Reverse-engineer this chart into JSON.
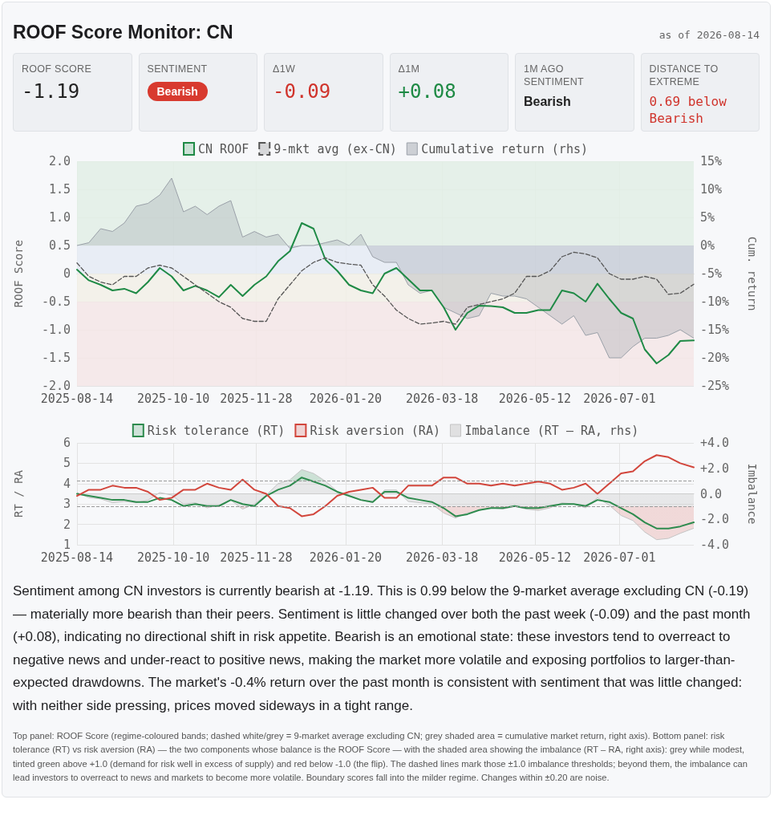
{
  "chart_data": [
    {
      "type": "other",
      "title": "ROOF Score Monitor: CN",
      "subtitle": "as of 2026-08-14",
      "annotations": [
        "ROOF SCORE",
        "-1.19",
        "SENTIMENT",
        "Bearish",
        "Δ1W",
        "-0.09",
        "Δ1M",
        "+0.08",
        "1M AGO SENTIMENT",
        "Bearish",
        "DISTANCE TO EXTREME",
        "0.69 below Bearish"
      ]
    },
    {
      "type": "line",
      "legend": "top",
      "grid": true,
      "marker": "none",
      "ylabel": "ROOF Score",
      "y2label": "Cum. return",
      "x": [
        "2025-08-14",
        "2025-08-21",
        "2025-08-28",
        "2025-09-04",
        "2025-09-11",
        "2025-09-18",
        "2025-09-25",
        "2025-10-02",
        "2025-10-09",
        "2025-10-16",
        "2025-10-23",
        "2025-10-30",
        "2025-11-06",
        "2025-11-13",
        "2025-11-20",
        "2025-11-27",
        "2025-12-04",
        "2025-12-11",
        "2025-12-18",
        "2025-12-25",
        "2026-01-01",
        "2026-01-08",
        "2026-01-15",
        "2026-01-22",
        "2026-01-29",
        "2026-02-05",
        "2026-02-12",
        "2026-02-19",
        "2026-02-26",
        "2026-03-05",
        "2026-03-12",
        "2026-03-19",
        "2026-03-26",
        "2026-04-02",
        "2026-04-09",
        "2026-04-16",
        "2026-04-23",
        "2026-04-30",
        "2026-05-07",
        "2026-05-14",
        "2026-05-21",
        "2026-05-28",
        "2026-06-04",
        "2026-06-11",
        "2026-06-18",
        "2026-06-25",
        "2026-07-02",
        "2026-07-09",
        "2026-07-16",
        "2026-07-23",
        "2026-07-30",
        "2026-08-06",
        "2026-08-14"
      ],
      "xlim": [
        "2025-08-14",
        "2026-08-14"
      ],
      "xticks": [
        "2025-08-14",
        "2025-10-10",
        "2025-11-28",
        "2026-01-20",
        "2026-03-18",
        "2026-05-12",
        "2026-07-01"
      ],
      "ylim": [
        -2,
        2
      ],
      "yticks": [
        {
          "value": -2,
          "label": "-2.0"
        },
        -1.5,
        {
          "value": -1,
          "label": "-1.0"
        },
        -0.5,
        0,
        0.5,
        {
          "value": 1,
          "label": "1.0"
        },
        1.5,
        {
          "value": 2,
          "label": "2.0"
        }
      ],
      "y2lim": [
        -25,
        15
      ],
      "y2ticks": [
        {
          "value": -25,
          "label": "-25%"
        },
        {
          "value": -20,
          "label": "-20%"
        },
        {
          "value": -15,
          "label": "-15%"
        },
        {
          "value": -10,
          "label": "-10%"
        },
        {
          "value": -5,
          "label": "-5%"
        },
        {
          "value": 0,
          "label": "0%"
        },
        {
          "value": 5,
          "label": "5%"
        },
        {
          "value": 10,
          "label": "10%"
        },
        {
          "value": 15,
          "label": "15%"
        }
      ],
      "bands": [
        {
          "axis": "y",
          "from": 0.5,
          "to": 2,
          "color": "#e2eee5"
        },
        {
          "axis": "y",
          "from": 0,
          "to": 0.5,
          "color": "#e5ebf3"
        },
        {
          "axis": "y",
          "from": -0.5,
          "to": 0,
          "color": "#f2f0e6"
        },
        {
          "axis": "y",
          "from": -2,
          "to": -0.5,
          "color": "#f5e6e6"
        }
      ],
      "series": [
        {
          "name": "CN ROOF",
          "color": "#1f8a46",
          "values": [
            0.07,
            -0.12,
            -0.2,
            -0.3,
            -0.27,
            -0.35,
            -0.15,
            0.1,
            -0.05,
            -0.3,
            -0.22,
            -0.3,
            -0.42,
            -0.2,
            -0.4,
            -0.2,
            -0.05,
            0.22,
            0.4,
            0.9,
            0.8,
            0.25,
            0.05,
            -0.2,
            -0.3,
            -0.35,
            0,
            0.1,
            -0.1,
            -0.3,
            -0.3,
            -0.6,
            -1,
            -0.7,
            -0.57,
            -0.58,
            -0.6,
            -0.7,
            -0.7,
            -0.65,
            -0.65,
            -0.3,
            -0.35,
            -0.5,
            -0.18,
            -0.45,
            -0.7,
            -0.8,
            -1.35,
            -1.6,
            -1.45,
            -1.2,
            -1.19
          ]
        },
        {
          "name": "9-mkt avg (ex-CN)",
          "color": "#555555",
          "line_style": "dashed",
          "values": [
            0.19,
            -0.05,
            -0.15,
            -0.2,
            -0.05,
            -0.05,
            0.1,
            0.15,
            0.1,
            -0.05,
            -0.2,
            -0.35,
            -0.5,
            -0.6,
            -0.8,
            -0.85,
            -0.85,
            -0.45,
            -0.2,
            0.05,
            0.2,
            0.28,
            0.2,
            0.17,
            0.15,
            -0.2,
            -0.4,
            -0.65,
            -0.8,
            -0.9,
            -0.88,
            -0.85,
            -0.9,
            -0.6,
            -0.55,
            -0.5,
            -0.45,
            -0.35,
            -0.05,
            -0.05,
            0.05,
            0.3,
            0.38,
            0.35,
            0.28,
            0,
            -0.1,
            -0.1,
            -0.05,
            -0.1,
            -0.37,
            -0.35,
            -0.19
          ]
        },
        {
          "name": "Cumulative return (rhs)",
          "type": "area",
          "axis": "y2",
          "color": "#9aa0a8",
          "values": [
            0,
            0.5,
            3,
            2.5,
            4,
            7,
            7.5,
            9,
            12,
            6,
            7,
            5.5,
            7,
            8,
            1.5,
            2.5,
            1.5,
            2,
            -0.5,
            0,
            0,
            0.5,
            1,
            0,
            2,
            -2,
            -3,
            -3,
            -7,
            -8.5,
            -8,
            -11,
            -12,
            -13,
            -12.5,
            -8.5,
            -9,
            -9,
            -9.5,
            -11,
            -12.5,
            -14,
            -12.5,
            -16,
            -15.5,
            -20,
            -20,
            -18,
            -16.5,
            -16.5,
            -16,
            -15,
            -16.5
          ]
        }
      ]
    },
    {
      "type": "line",
      "legend": "top",
      "grid": true,
      "marker": "none",
      "ylabel": "RT / RA",
      "y2label": "Imbalance",
      "x": [
        "2025-08-14",
        "2025-08-21",
        "2025-08-28",
        "2025-09-04",
        "2025-09-11",
        "2025-09-18",
        "2025-09-25",
        "2025-10-02",
        "2025-10-09",
        "2025-10-16",
        "2025-10-23",
        "2025-10-30",
        "2025-11-06",
        "2025-11-13",
        "2025-11-20",
        "2025-11-27",
        "2025-12-04",
        "2025-12-11",
        "2025-12-18",
        "2025-12-25",
        "2026-01-01",
        "2026-01-08",
        "2026-01-15",
        "2026-01-22",
        "2026-01-29",
        "2026-02-05",
        "2026-02-12",
        "2026-02-19",
        "2026-02-26",
        "2026-03-05",
        "2026-03-12",
        "2026-03-19",
        "2026-03-26",
        "2026-04-02",
        "2026-04-09",
        "2026-04-16",
        "2026-04-23",
        "2026-04-30",
        "2026-05-07",
        "2026-05-14",
        "2026-05-21",
        "2026-05-28",
        "2026-06-04",
        "2026-06-11",
        "2026-06-18",
        "2026-06-25",
        "2026-07-02",
        "2026-07-09",
        "2026-07-16",
        "2026-07-23",
        "2026-07-30",
        "2026-08-06",
        "2026-08-14"
      ],
      "xlim": [
        "2025-08-14",
        "2026-08-14"
      ],
      "xticks": [
        "2025-08-14",
        "2025-10-10",
        "2025-11-28",
        "2026-01-20",
        "2026-03-18",
        "2026-05-12",
        "2026-07-01"
      ],
      "ylim": [
        1,
        6
      ],
      "yticks": [
        1,
        2,
        3,
        4,
        5,
        6
      ],
      "y2lim": [
        -4,
        4
      ],
      "y2ticks": [
        {
          "value": -4,
          "label": "-4.0"
        },
        {
          "value": -2,
          "label": "-2.0"
        },
        {
          "value": 0,
          "label": "0.0"
        },
        {
          "value": 2,
          "label": "+2.0"
        },
        {
          "value": 4,
          "label": "+4.0"
        }
      ],
      "ref_lines": [
        {
          "axis": "y2",
          "value": 1,
          "color": "#9a9a9a",
          "line_style": "dashed"
        },
        {
          "axis": "y2",
          "value": -1,
          "color": "#9a9a9a",
          "line_style": "dashed"
        }
      ],
      "series": [
        {
          "name": "Risk tolerance (RT)",
          "color": "#2e8b4e",
          "values": [
            3.5,
            3.4,
            3.3,
            3.2,
            3.2,
            3.1,
            3.1,
            3.3,
            3.2,
            2.9,
            3.0,
            2.9,
            2.9,
            3.2,
            3.0,
            2.9,
            3.4,
            3.7,
            3.9,
            4.3,
            4.1,
            3.9,
            3.6,
            3.4,
            3.2,
            3.1,
            3.6,
            3.6,
            3.3,
            3.2,
            3.1,
            2.8,
            2.4,
            2.5,
            2.7,
            2.8,
            2.8,
            2.9,
            2.8,
            2.8,
            2.9,
            3.0,
            3.0,
            2.9,
            3.2,
            3.1,
            2.8,
            2.5,
            2.1,
            1.8,
            1.8,
            1.9,
            2.1
          ]
        },
        {
          "name": "Risk aversion (RA)",
          "color": "#d2463c",
          "values": [
            3.4,
            3.7,
            3.7,
            3.9,
            3.8,
            3.8,
            3.6,
            3.2,
            3.3,
            3.7,
            3.7,
            4.0,
            3.8,
            3.7,
            4.2,
            3.7,
            3.5,
            2.9,
            2.8,
            2.4,
            2.5,
            2.9,
            3.4,
            3.6,
            3.7,
            3.8,
            3.3,
            3.3,
            3.9,
            3.9,
            3.9,
            4.3,
            4.3,
            4.0,
            4.0,
            3.9,
            4.0,
            3.9,
            4.0,
            4.1,
            4.0,
            3.7,
            3.8,
            4.0,
            3.5,
            4.0,
            4.5,
            4.6,
            5.1,
            5.4,
            5.3,
            5.0,
            4.8
          ]
        },
        {
          "name": "Imbalance (RT – RA, rhs)",
          "type": "area",
          "axis": "y2",
          "color": "#c4c4c4",
          "values": [
            0.1,
            -0.3,
            -0.4,
            -0.7,
            -0.6,
            -0.7,
            -0.5,
            0.1,
            -0.1,
            -0.8,
            -0.7,
            -1.1,
            -0.9,
            -0.5,
            -1.2,
            -0.8,
            -0.1,
            0.8,
            1.1,
            1.9,
            1.6,
            1.0,
            0.2,
            -0.2,
            -0.5,
            -0.7,
            0.3,
            0.3,
            -0.6,
            -0.7,
            -0.8,
            -1.5,
            -1.9,
            -1.5,
            -1.3,
            -1.1,
            -1.2,
            -1.0,
            -1.2,
            -1.3,
            -1.1,
            -0.7,
            -0.8,
            -1.1,
            -0.3,
            -0.9,
            -1.7,
            -2.1,
            -3.0,
            -3.6,
            -3.5,
            -3.1,
            -2.7
          ]
        }
      ]
    },
    {
      "type": "other",
      "annotations": [
        "Sentiment among CN investors is currently bearish at -1.19. This is 0.99 below the 9-market average excluding CN (-0.19) — materially more bearish than their peers. Sentiment is little changed over both the past week (-0.09) and the past month (+0.08), indicating no directional shift in risk appetite. Bearish is an emotional state: these investors tend to overreact to negative news and under-react to positive news, making the market more volatile and exposing portfolios to larger-than-expected drawdowns. The market's -0.4% return over the past month is consistent with sentiment that was little changed: with neither side pressing, prices moved sideways in a tight range.",
        "Top panel: ROOF Score (regime-coloured bands; dashed white/grey = 9-market average excluding CN; grey shaded area = cumulative market return, right axis). Bottom panel: risk tolerance (RT) vs risk aversion (RA) — the two components whose balance is the ROOF Score — with the shaded area showing the imbalance (RT – RA, right axis): grey while modest, tinted green above +1.0 (demand for risk well in excess of supply) and red below -1.0 (the flip). The dashed lines mark those ±1.0 imbalance thresholds; beyond them, the imbalance can lead investors to overreact to news and markets to become more volatile. Boundary scores fall into the milder regime. Changes within ±0.20 are noise."
      ]
    }
  ]
}
